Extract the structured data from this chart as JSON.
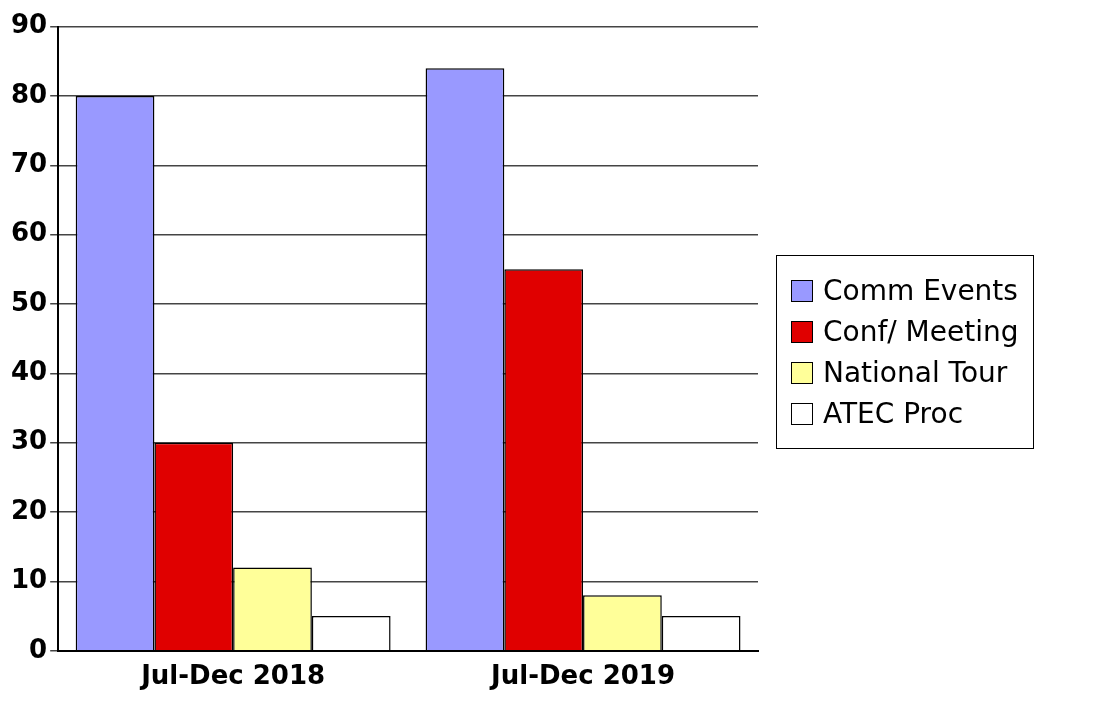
{
  "chart_data": {
    "type": "bar",
    "categories": [
      "Jul-Dec 2018",
      "Jul-Dec 2019"
    ],
    "series": [
      {
        "name": "Comm Events",
        "color": "#9999ff",
        "values": [
          80,
          84
        ]
      },
      {
        "name": "Conf/ Meeting",
        "color": "#e00000",
        "values": [
          30,
          55
        ]
      },
      {
        "name": "National Tour",
        "color": "#ffff99",
        "values": [
          12,
          8
        ]
      },
      {
        "name": "ATEC Proc",
        "color": "#ffffff",
        "values": [
          5,
          5
        ]
      }
    ],
    "ylim": [
      0,
      90
    ],
    "yticks": [
      0,
      10,
      20,
      30,
      40,
      50,
      60,
      70,
      80,
      90
    ],
    "grid": "y",
    "legend": "right"
  }
}
